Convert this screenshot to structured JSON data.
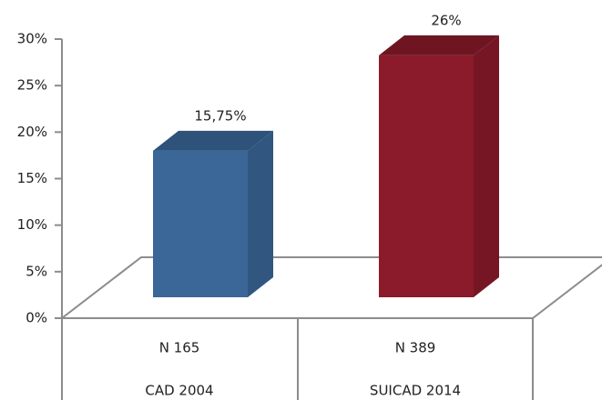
{
  "chart_data": {
    "type": "bar3d",
    "categories": [
      "N 165",
      "N 389"
    ],
    "groups": [
      "CAD 2004",
      "SUICAD 2014"
    ],
    "values": [
      15.75,
      26
    ],
    "value_labels": [
      "15,75%",
      "26%"
    ],
    "colors": [
      "#3a6698",
      "#8b1a2b"
    ],
    "ylim": [
      0,
      30
    ],
    "yticks": [
      {
        "value": 0,
        "label": "0%"
      },
      {
        "value": 5,
        "label": "5%"
      },
      {
        "value": 10,
        "label": "10%"
      },
      {
        "value": 15,
        "label": "15%"
      },
      {
        "value": 20,
        "label": "20%"
      },
      {
        "value": 25,
        "label": "25%"
      },
      {
        "value": 30,
        "label": "30%"
      }
    ]
  }
}
